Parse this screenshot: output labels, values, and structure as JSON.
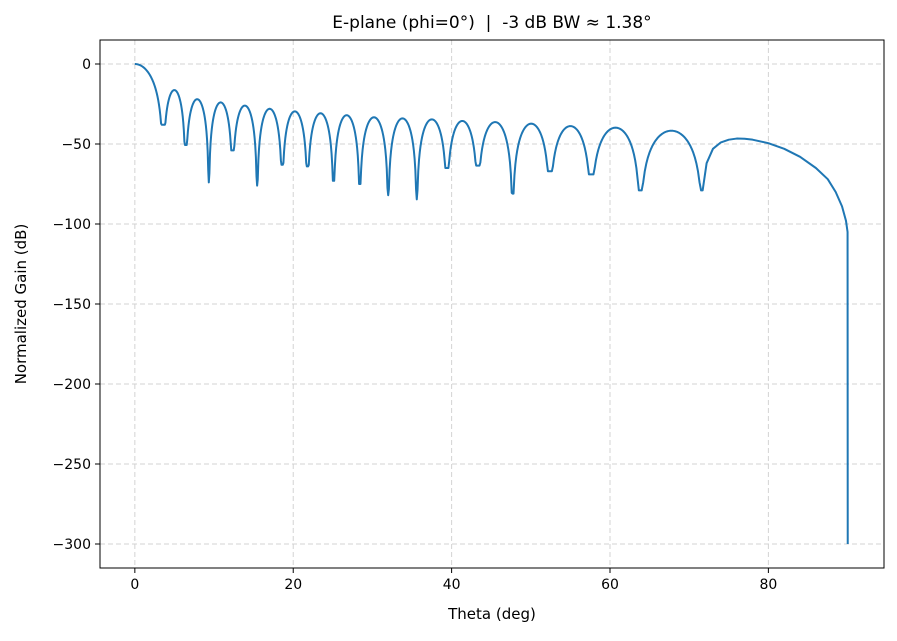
{
  "chart_data": {
    "type": "line",
    "title": "E-plane (phi=0°)  |  -3 dB BW ≈ 1.38°",
    "xlabel": "Theta (deg)",
    "ylabel": "Normalized Gain (dB)",
    "xlim": [
      -4.4,
      94.6
    ],
    "ylim": [
      -315,
      15
    ],
    "xticks": [
      0,
      20,
      40,
      60,
      80
    ],
    "yticks": [
      0,
      -50,
      -100,
      -150,
      -200,
      -250,
      -300
    ],
    "ytick_labels": [
      "0",
      "−50",
      "−100",
      "−150",
      "−200",
      "−250",
      "−300"
    ],
    "grid": true,
    "line_color": "#1f77b4",
    "main_lobe_peak": [
      0,
      0
    ],
    "nulls": [
      [
        3.58,
        -38
      ],
      [
        6.4,
        -50.6
      ],
      [
        9.34,
        -74
      ],
      [
        12.33,
        -54
      ],
      [
        15.44,
        -76
      ],
      [
        18.6,
        -63
      ],
      [
        21.8,
        -64
      ],
      [
        25.09,
        -73
      ],
      [
        28.4,
        -75
      ],
      [
        31.99,
        -82
      ],
      [
        35.6,
        -84.6
      ],
      [
        39.4,
        -65
      ],
      [
        43.3,
        -63.5
      ],
      [
        47.7,
        -81
      ],
      [
        52.4,
        -67
      ],
      [
        57.6,
        -69
      ],
      [
        63.8,
        -79
      ],
      [
        71.7,
        -79
      ]
    ],
    "sidelobe_peaks": [
      -16.3,
      -22,
      -24,
      -26,
      -28,
      -29.6,
      -30.8,
      -32,
      -33.3,
      -34,
      -34.6,
      -35.6,
      -36.3,
      -37.3,
      -38.8,
      -39.8,
      -41.7
    ],
    "tail": [
      [
        72.2,
        -62
      ],
      [
        73,
        -53
      ],
      [
        74,
        -49
      ],
      [
        75,
        -47.3
      ],
      [
        76,
        -46.6
      ],
      [
        77,
        -46.7
      ],
      [
        78,
        -47.3
      ],
      [
        80,
        -49.5
      ],
      [
        82,
        -53
      ],
      [
        84,
        -58
      ],
      [
        86,
        -65
      ],
      [
        87.5,
        -72
      ],
      [
        88.5,
        -80
      ],
      [
        89.3,
        -89
      ],
      [
        89.8,
        -98
      ],
      [
        90,
        -105
      ],
      [
        90.02,
        -300
      ]
    ]
  }
}
